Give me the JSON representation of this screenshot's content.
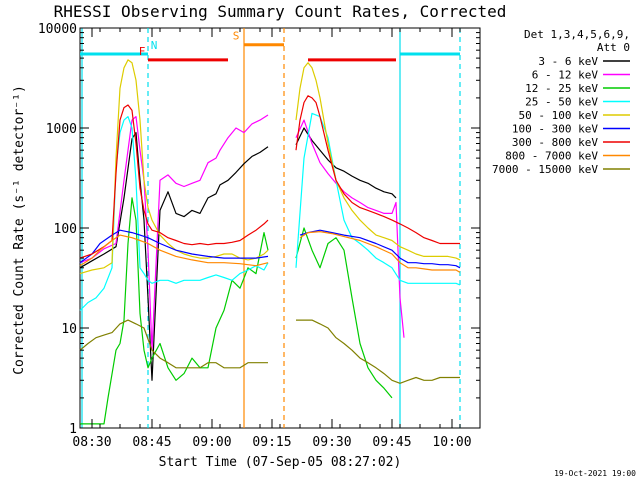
{
  "chart_data": {
    "type": "line",
    "title": "RHESSI Observing Summary Count Rates, Corrected",
    "xlabel": "Start Time (07-Sep-05 08:27:02)",
    "ylabel": "Corrected Count Rate (s⁻¹ detector⁻¹)",
    "yscale": "log",
    "ylim": [
      1,
      10000
    ],
    "xlim": [
      0,
      100
    ],
    "x_unit": "minutes since 08:27:02",
    "x_ticks": [
      {
        "t": 3,
        "label": "08:30"
      },
      {
        "t": 18,
        "label": "08:45"
      },
      {
        "t": 33,
        "label": "09:00"
      },
      {
        "t": 48,
        "label": "09:15"
      },
      {
        "t": 63,
        "label": "09:30"
      },
      {
        "t": 78,
        "label": "09:45"
      },
      {
        "t": 93,
        "label": "10:00"
      }
    ],
    "y_ticks": [
      {
        "v": 1,
        "label": "1"
      },
      {
        "v": 10,
        "label": "10"
      },
      {
        "v": 100,
        "label": "100"
      },
      {
        "v": 1000,
        "label": "1000"
      },
      {
        "v": 10000,
        "label": "10000"
      }
    ],
    "legend_header": [
      "Det 1,3,4,5,6,9,",
      "Att 0"
    ],
    "legend_position": "right",
    "timestamp": "19-Oct-2021 19:00",
    "series": [
      {
        "name": "3 - 6 keV",
        "color": "#000000",
        "x": [
          0,
          3,
          6,
          9,
          11,
          13,
          14,
          15,
          16,
          17,
          18,
          20,
          22,
          24,
          26,
          28,
          30,
          32,
          34,
          35,
          37,
          39,
          41,
          43,
          45,
          47,
          53,
          54,
          56,
          58,
          60,
          62,
          64,
          66,
          68,
          70,
          72,
          74,
          76,
          78,
          79,
          80,
          81,
          82
        ],
        "y": [
          40,
          47,
          55,
          65,
          200,
          780,
          900,
          300,
          120,
          20,
          3,
          150,
          230,
          140,
          130,
          150,
          140,
          200,
          220,
          270,
          300,
          360,
          440,
          520,
          570,
          650,
          null,
          680,
          1000,
          750,
          600,
          480,
          400,
          370,
          330,
          300,
          280,
          250,
          230,
          220,
          200,
          null,
          null,
          null
        ]
      },
      {
        "name": "6 - 12 keV",
        "color": "#ff00ff",
        "x": [
          0,
          3,
          6,
          9,
          11,
          13,
          14,
          15,
          16,
          17,
          18,
          20,
          22,
          24,
          26,
          28,
          30,
          32,
          34,
          35,
          37,
          39,
          41,
          43,
          45,
          47,
          53,
          54,
          56,
          58,
          60,
          62,
          64,
          66,
          68,
          70,
          72,
          74,
          76,
          78,
          79,
          80,
          81,
          82
        ],
        "y": [
          45,
          50,
          62,
          70,
          300,
          1200,
          1300,
          600,
          300,
          60,
          6,
          300,
          340,
          280,
          260,
          280,
          300,
          450,
          500,
          600,
          800,
          1000,
          900,
          1100,
          1200,
          1350,
          null,
          800,
          1200,
          700,
          450,
          350,
          280,
          230,
          200,
          180,
          160,
          150,
          140,
          140,
          180,
          20,
          8,
          null
        ]
      },
      {
        "name": "12 - 25 keV",
        "color": "#00cc00",
        "x": [
          0,
          4,
          6,
          7,
          9,
          10,
          11,
          12,
          13,
          14,
          15,
          16,
          17,
          18,
          20,
          22,
          24,
          26,
          28,
          30,
          32,
          34,
          36,
          38,
          40,
          42,
          44,
          46,
          47,
          53,
          54,
          56,
          58,
          60,
          62,
          64,
          66,
          68,
          70,
          72,
          74,
          76,
          78,
          79
        ],
        "y": [
          1.1,
          1.1,
          1.1,
          2,
          6,
          7,
          12,
          70,
          200,
          120,
          14,
          6,
          4,
          5,
          7,
          4,
          3,
          3.5,
          5,
          4,
          4,
          10,
          15,
          30,
          25,
          40,
          35,
          90,
          60,
          null,
          50,
          100,
          60,
          40,
          70,
          80,
          60,
          20,
          7,
          4,
          3,
          2.5,
          2,
          null
        ]
      },
      {
        "name": "25 - 50 keV",
        "color": "#00ffff",
        "x": [
          0,
          2,
          4,
          6,
          8,
          9,
          10,
          11,
          12,
          13,
          14,
          15,
          16,
          17,
          18,
          20,
          22,
          24,
          26,
          28,
          30,
          32,
          34,
          36,
          38,
          40,
          42,
          44,
          46,
          47,
          53,
          54,
          56,
          58,
          60,
          62,
          64,
          66,
          68,
          70,
          72,
          74,
          76,
          78,
          80,
          82,
          84,
          86,
          88,
          90,
          92,
          94,
          95
        ],
        "y": [
          15,
          18,
          20,
          25,
          40,
          400,
          900,
          1200,
          1300,
          1000,
          300,
          40,
          35,
          30,
          28,
          30,
          30,
          28,
          30,
          30,
          30,
          32,
          34,
          32,
          30,
          35,
          38,
          42,
          38,
          45,
          null,
          40,
          500,
          1400,
          1300,
          800,
          300,
          120,
          80,
          70,
          60,
          50,
          45,
          40,
          30,
          28,
          28,
          28,
          28,
          28,
          28,
          28,
          27
        ]
      },
      {
        "name": "50 - 100 keV",
        "color": "#ddcc00",
        "x": [
          0,
          3,
          6,
          8,
          9,
          10,
          11,
          12,
          13,
          14,
          15,
          16,
          17,
          18,
          20,
          22,
          24,
          26,
          28,
          30,
          32,
          34,
          36,
          38,
          40,
          42,
          44,
          46,
          47,
          53,
          54,
          55,
          56,
          57,
          58,
          59,
          60,
          62,
          64,
          66,
          68,
          70,
          72,
          74,
          76,
          78,
          80,
          82,
          84,
          86,
          88,
          90,
          92,
          94,
          95
        ],
        "y": [
          35,
          38,
          40,
          45,
          500,
          2500,
          4000,
          4800,
          4500,
          3000,
          1200,
          300,
          160,
          120,
          85,
          70,
          60,
          55,
          52,
          50,
          50,
          52,
          55,
          55,
          50,
          48,
          50,
          55,
          60,
          null,
          1200,
          2500,
          4000,
          4500,
          4000,
          3000,
          2000,
          700,
          300,
          200,
          150,
          120,
          100,
          85,
          80,
          75,
          65,
          60,
          55,
          52,
          52,
          52,
          52,
          50,
          48
        ]
      },
      {
        "name": "100 - 300 keV",
        "color": "#0000ff",
        "x": [
          0,
          3,
          5,
          8,
          10,
          13,
          15,
          17,
          20,
          24,
          28,
          32,
          36,
          40,
          44,
          47,
          53,
          55,
          57,
          60,
          63,
          66,
          70,
          74,
          78,
          80,
          82,
          84,
          86,
          88,
          90,
          92,
          94,
          95
        ],
        "y": [
          45,
          55,
          70,
          85,
          95,
          90,
          85,
          80,
          70,
          60,
          55,
          52,
          50,
          50,
          50,
          52,
          null,
          85,
          90,
          95,
          90,
          85,
          80,
          70,
          60,
          50,
          45,
          45,
          44,
          44,
          43,
          43,
          42,
          40
        ]
      },
      {
        "name": "300 - 800 keV",
        "color": "#ee0000",
        "x": [
          0,
          3,
          6,
          8,
          9,
          10,
          11,
          12,
          13,
          14,
          15,
          16,
          17,
          18,
          20,
          22,
          24,
          26,
          28,
          30,
          32,
          34,
          36,
          38,
          40,
          42,
          44,
          46,
          47,
          53,
          54,
          55,
          56,
          57,
          58,
          59,
          60,
          62,
          64,
          66,
          68,
          70,
          72,
          74,
          76,
          78,
          80,
          82,
          84,
          86,
          88,
          90,
          92,
          94,
          95
        ],
        "y": [
          50,
          55,
          65,
          75,
          350,
          1200,
          1600,
          1700,
          1500,
          700,
          250,
          150,
          110,
          95,
          90,
          80,
          75,
          70,
          68,
          70,
          68,
          70,
          70,
          72,
          75,
          85,
          95,
          110,
          120,
          null,
          600,
          1200,
          1800,
          2100,
          2000,
          1800,
          1300,
          600,
          300,
          220,
          180,
          160,
          150,
          140,
          130,
          120,
          110,
          100,
          90,
          80,
          75,
          70,
          70,
          70,
          70
        ]
      },
      {
        "name": "800 - 7000 keV",
        "color": "#ff8800",
        "x": [
          0,
          3,
          5,
          8,
          10,
          13,
          15,
          17,
          20,
          24,
          28,
          32,
          36,
          40,
          44,
          47,
          53,
          55,
          57,
          60,
          63,
          66,
          70,
          74,
          78,
          80,
          82,
          84,
          86,
          88,
          90,
          92,
          94,
          95
        ],
        "y": [
          42,
          50,
          60,
          75,
          85,
          80,
          75,
          70,
          60,
          52,
          48,
          45,
          45,
          44,
          42,
          45,
          null,
          80,
          90,
          92,
          88,
          82,
          75,
          65,
          55,
          45,
          40,
          40,
          39,
          38,
          38,
          38,
          38,
          36
        ]
      },
      {
        "name": "7000 - 15000 keV",
        "color": "#808000",
        "x": [
          0,
          2,
          4,
          6,
          8,
          10,
          12,
          14,
          16,
          18,
          20,
          22,
          24,
          26,
          28,
          30,
          32,
          34,
          36,
          38,
          40,
          42,
          44,
          46,
          47,
          53,
          54,
          56,
          58,
          60,
          62,
          64,
          66,
          68,
          70,
          72,
          74,
          76,
          78,
          80,
          82,
          84,
          86,
          88,
          90,
          92,
          94,
          95
        ],
        "y": [
          6,
          7,
          8,
          8.5,
          9,
          11,
          12,
          11,
          10,
          6,
          5,
          4.5,
          4,
          4,
          4,
          4,
          4.5,
          4.5,
          4,
          4,
          4,
          4.5,
          4.5,
          4.5,
          4.5,
          null,
          12,
          12,
          12,
          11,
          10,
          8,
          7,
          6,
          5,
          4.5,
          4,
          3.5,
          3,
          2.8,
          3,
          3.2,
          3,
          3,
          3.2,
          3.2,
          3.2,
          3.2
        ]
      }
    ],
    "flags": [
      {
        "name": "N",
        "label": "N",
        "color": "#00e0ee",
        "level": 5500,
        "ranges": [
          [
            0,
            17
          ],
          [
            80,
            95
          ]
        ]
      },
      {
        "name": "F",
        "label": "F",
        "color": "#ee0000",
        "level": 4800,
        "ranges": [
          [
            17,
            37
          ],
          [
            57,
            79
          ]
        ]
      },
      {
        "name": "S",
        "label": "S",
        "color": "#ff8800",
        "level": 6800,
        "ranges": [
          [
            41,
            51
          ]
        ]
      }
    ],
    "vlines": [
      {
        "name": "saa-start",
        "t": 41,
        "color": "#ff8800",
        "style": "solid"
      },
      {
        "name": "saa-end",
        "t": 51,
        "color": "#ff8800",
        "style": "dashed"
      },
      {
        "name": "night-start-1",
        "t": 0.5,
        "color": "#00e0ee",
        "style": "solid"
      },
      {
        "name": "night-end-1",
        "t": 17,
        "color": "#00e0ee",
        "style": "dashed"
      },
      {
        "name": "night-start-2",
        "t": 80,
        "color": "#00e0ee",
        "style": "solid"
      },
      {
        "name": "night-end-2",
        "t": 95,
        "color": "#00e0ee",
        "style": "dashed"
      }
    ]
  }
}
